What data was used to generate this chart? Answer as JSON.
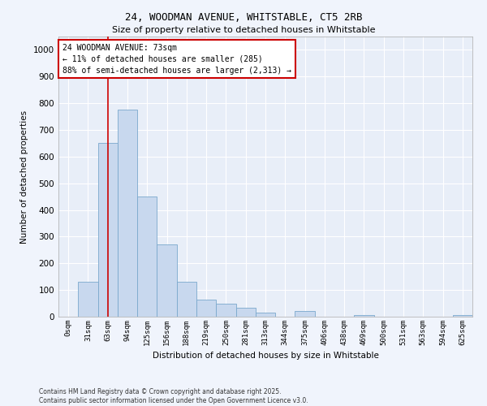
{
  "title": "24, WOODMAN AVENUE, WHITSTABLE, CT5 2RB",
  "subtitle": "Size of property relative to detached houses in Whitstable",
  "xlabel": "Distribution of detached houses by size in Whitstable",
  "ylabel": "Number of detached properties",
  "bar_color": "#c8d8ee",
  "bar_edge_color": "#7aa8cc",
  "background_color": "#e8eef8",
  "grid_color": "#ffffff",
  "annotation_box_color": "#cc0000",
  "property_line_color": "#cc0000",
  "categories": [
    "0sqm",
    "31sqm",
    "63sqm",
    "94sqm",
    "125sqm",
    "156sqm",
    "188sqm",
    "219sqm",
    "250sqm",
    "281sqm",
    "313sqm",
    "344sqm",
    "375sqm",
    "406sqm",
    "438sqm",
    "469sqm",
    "500sqm",
    "531sqm",
    "563sqm",
    "594sqm",
    "625sqm"
  ],
  "values": [
    0,
    130,
    650,
    775,
    450,
    270,
    130,
    65,
    50,
    35,
    15,
    0,
    20,
    0,
    0,
    5,
    0,
    0,
    0,
    0,
    5
  ],
  "ylim": [
    0,
    1050
  ],
  "yticks": [
    0,
    100,
    200,
    300,
    400,
    500,
    600,
    700,
    800,
    900,
    1000
  ],
  "property_bin_index": 2,
  "annotation_text_line1": "24 WOODMAN AVENUE: 73sqm",
  "annotation_text_line2": "← 11% of detached houses are smaller (285)",
  "annotation_text_line3": "88% of semi-detached houses are larger (2,313) →",
  "footer_line1": "Contains HM Land Registry data © Crown copyright and database right 2025.",
  "footer_line2": "Contains public sector information licensed under the Open Government Licence v3.0.",
  "fig_width": 6.0,
  "fig_height": 5.0,
  "fig_bg": "#f0f4fc"
}
